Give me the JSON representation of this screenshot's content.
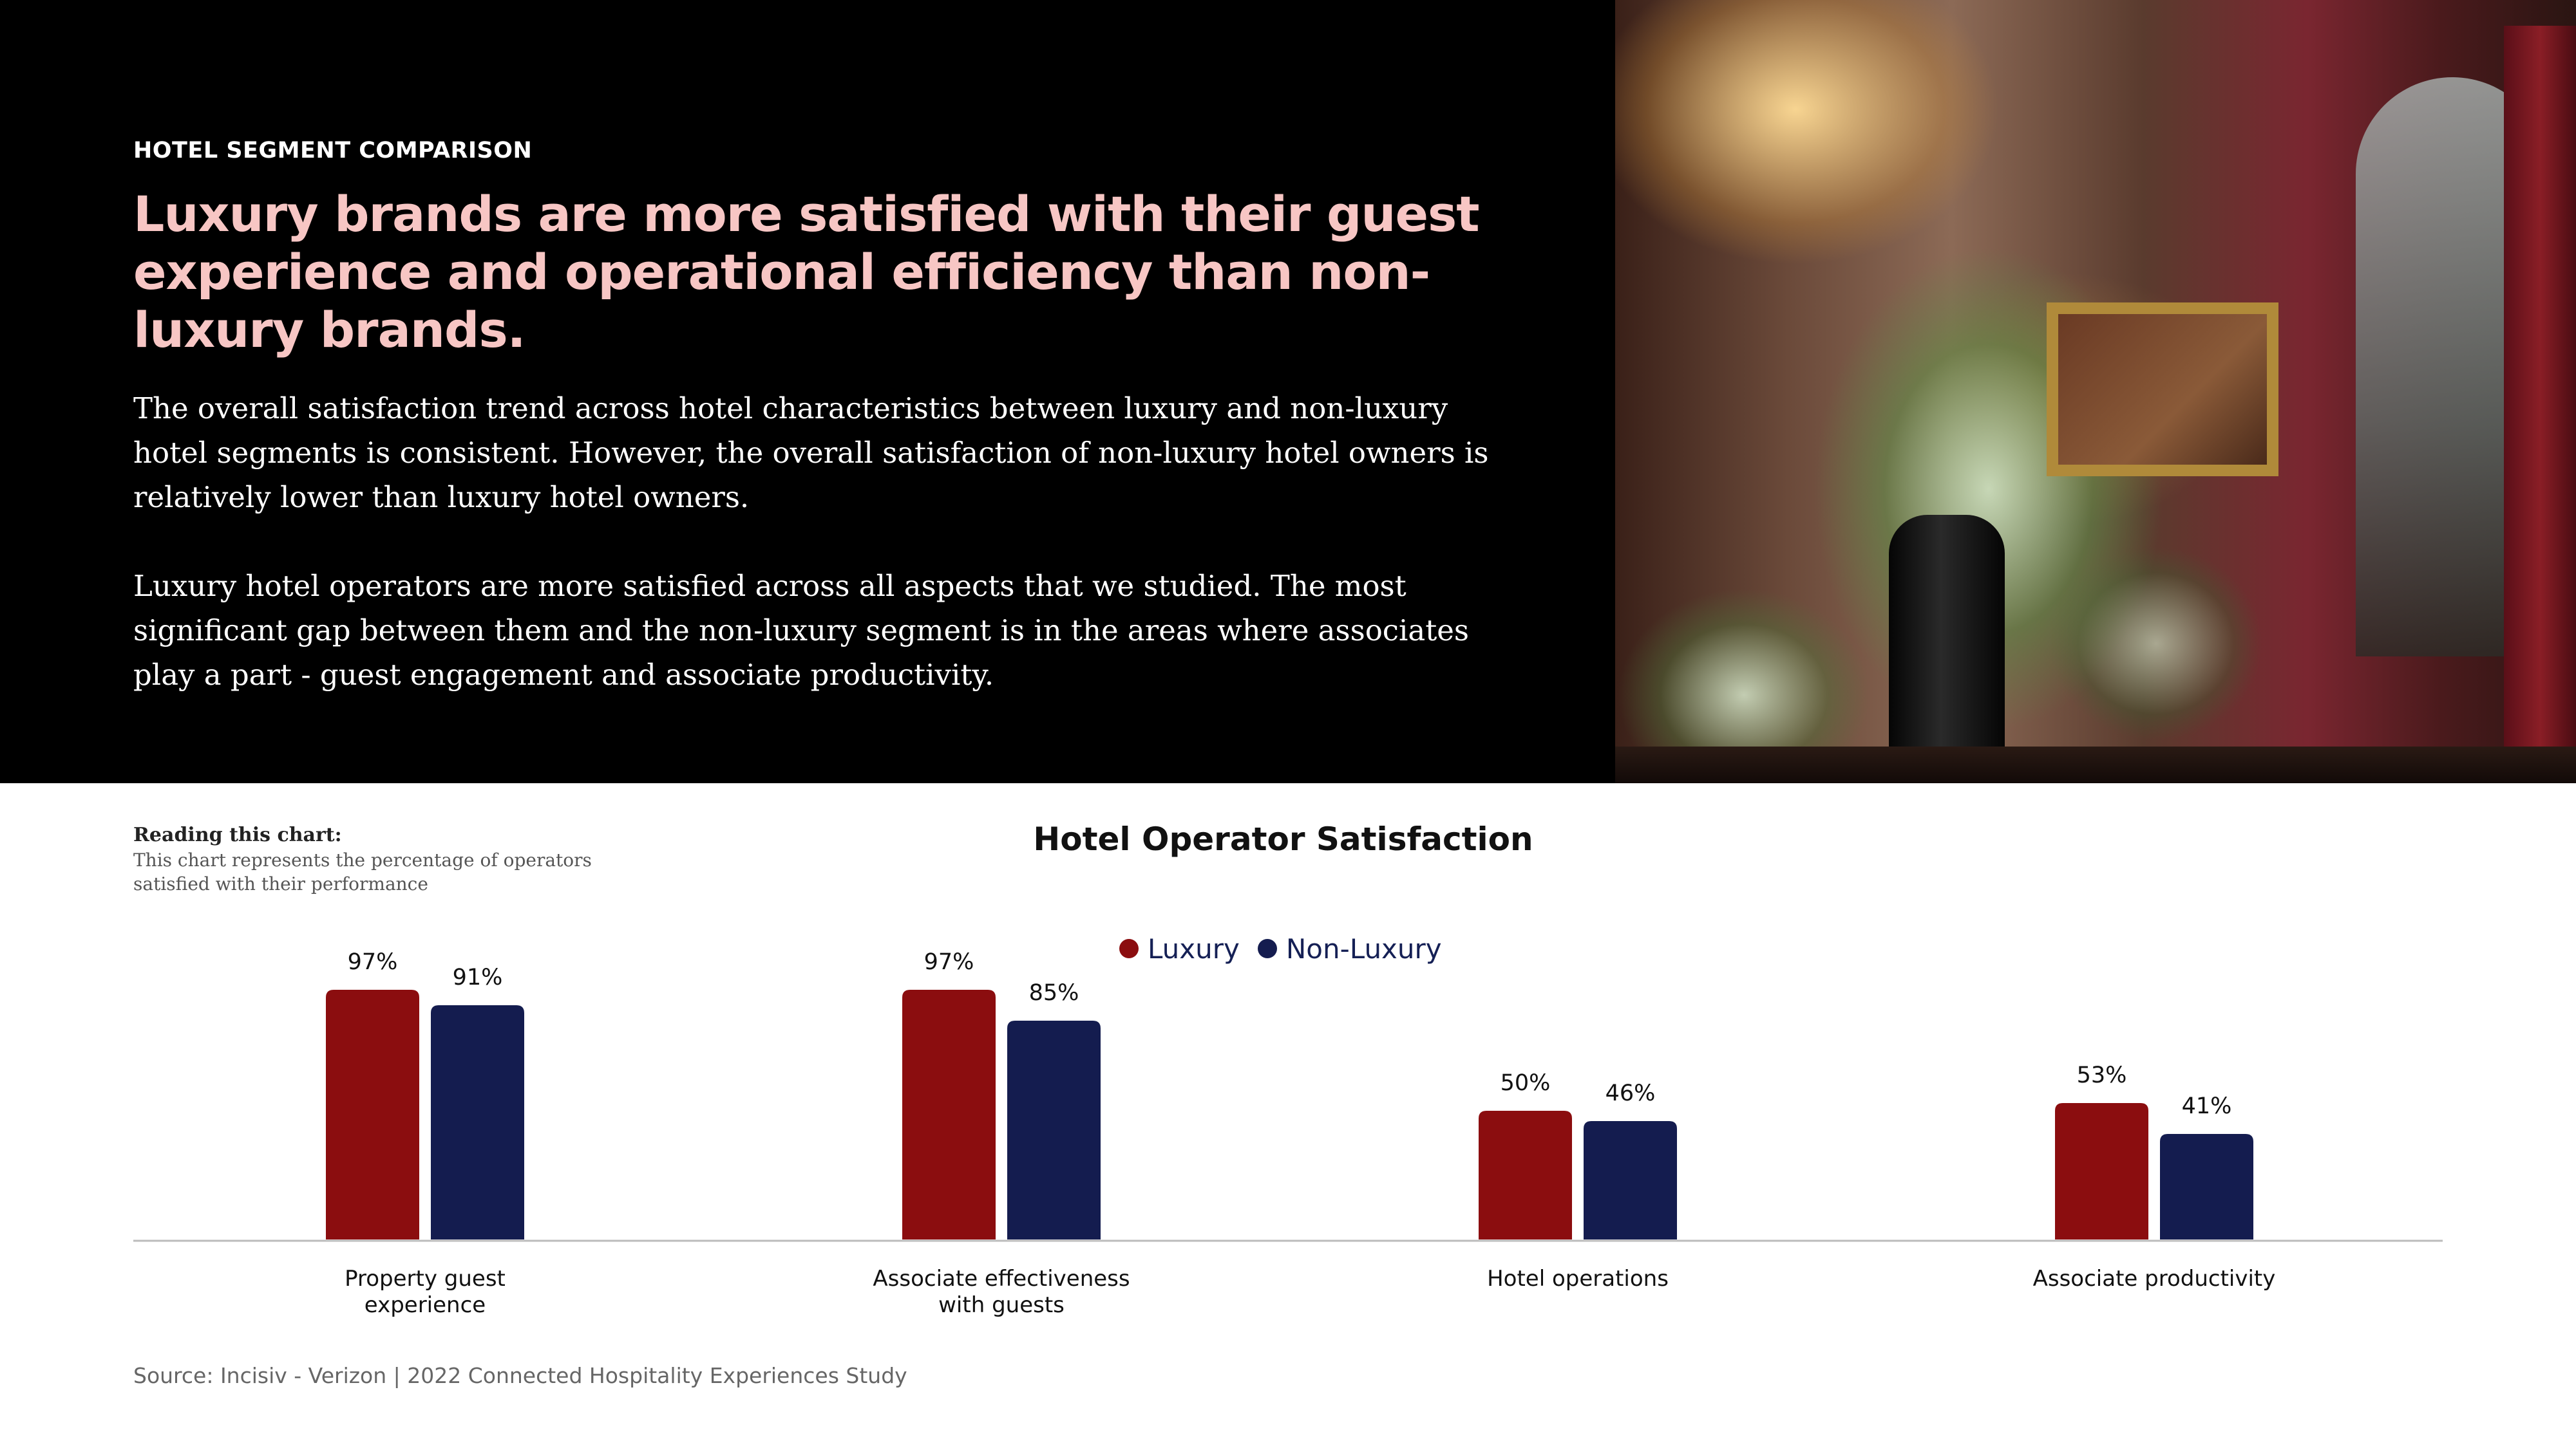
{
  "header": {
    "kicker": "HOTEL SEGMENT COMPARISON",
    "headline": "Luxury brands are more satisfied with their guest experience and operational efficiency than non-luxury brands.",
    "paragraph_1": "The overall satisfaction trend across hotel characteristics between luxury and non-luxury hotel segments is consistent. However, the overall satisfaction of non-luxury hotel owners is relatively lower than luxury hotel owners.",
    "paragraph_2": "Luxury hotel operators are more satisfied across all aspects that we studied. The most significant gap between them and the non-luxury segment is in the areas where associates play a part - guest engagement and associate productivity."
  },
  "reading_note": {
    "title": "Reading this chart:",
    "body": "This chart represents the percentage of operators  satisfied with their performance"
  },
  "footer": {
    "source": "Source: Incisiv - Verizon | 2022 Connected Hospitality Experiences Study"
  },
  "colors": {
    "luxury": "#8b0d0f",
    "non_luxury": "#141c4f",
    "headline": "#f7c6c4",
    "axis": "#bbbbbb"
  },
  "chart_data": {
    "type": "bar",
    "title": "Hotel Operator Satisfaction",
    "xlabel": "",
    "ylabel": "",
    "ylim": [
      0,
      100
    ],
    "grid": false,
    "legend_position": "top-center",
    "categories": [
      [
        "Property guest",
        "experience"
      ],
      [
        "Associate effectiveness",
        "with guests"
      ],
      [
        "Hotel operations"
      ],
      [
        "Associate productivity"
      ]
    ],
    "series": [
      {
        "name": "Luxury",
        "color": "#8b0d0f",
        "values": [
          97,
          97,
          50,
          53
        ],
        "labels": [
          "97%",
          "97%",
          "50%",
          "53%"
        ]
      },
      {
        "name": "Non-Luxury",
        "color": "#141c4f",
        "values": [
          91,
          85,
          46,
          41
        ],
        "labels": [
          "91%",
          "85%",
          "46%",
          "41%"
        ]
      }
    ]
  }
}
